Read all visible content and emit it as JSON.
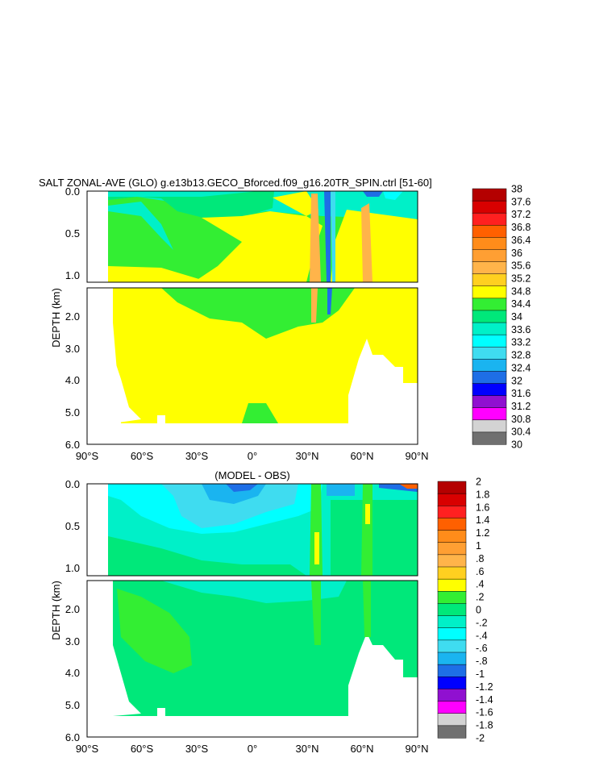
{
  "chart_data": [
    {
      "type": "heatmap",
      "title": "SALT ZONAL-AVE (GLO) g.e13b13.GECO_Bforced.f09_g16.20TR_SPIN.ctrl [51-60]",
      "ylabel": "DEPTH (km)",
      "x_ticks": [
        "90°S",
        "60°S",
        "30°S",
        "0°",
        "30°N",
        "60°N",
        "90°N"
      ],
      "upper_y_ticks": [
        "0.0",
        "0.5",
        "1.0"
      ],
      "lower_y_ticks": [
        "2.0",
        "3.0",
        "4.0",
        "5.0",
        "6.0"
      ],
      "xlim": [
        -90,
        90
      ],
      "ylim_km": [
        0,
        6
      ],
      "colorbar_labels": [
        "38",
        "37.6",
        "37.2",
        "36.8",
        "36.4",
        "36",
        "35.6",
        "35.2",
        "34.8",
        "34.4",
        "34",
        "33.6",
        "33.2",
        "32.8",
        "32.4",
        "32",
        "31.6",
        "31.2",
        "30.8",
        "30.4",
        "30"
      ],
      "colorbar_colors": [
        "#b40000",
        "#d80000",
        "#ff2020",
        "#ff6000",
        "#ff8c1a",
        "#ff9f33",
        "#ffb44a",
        "#ffd020",
        "#ffff00",
        "#33ee33",
        "#00e87a",
        "#00f0c8",
        "#00ffff",
        "#3fdcf0",
        "#1ab4f0",
        "#1e6ee6",
        "#0000ff",
        "#9010d0",
        "#ff00ff",
        "#d3d3d3",
        "#707070"
      ]
    },
    {
      "type": "heatmap",
      "title": "(MODEL - OBS)",
      "ylabel": "DEPTH (km)",
      "x_ticks": [
        "90°S",
        "60°S",
        "30°S",
        "0°",
        "30°N",
        "60°N",
        "90°N"
      ],
      "upper_y_ticks": [
        "0.0",
        "0.5",
        "1.0"
      ],
      "lower_y_ticks": [
        "2.0",
        "3.0",
        "4.0",
        "5.0",
        "6.0"
      ],
      "xlim": [
        -90,
        90
      ],
      "ylim_km": [
        0,
        6
      ],
      "colorbar_labels": [
        "2",
        "1.8",
        "1.6",
        "1.4",
        "1.2",
        "1",
        ".8",
        ".6",
        ".4",
        ".2",
        "0",
        "-.2",
        "-.4",
        "-.6",
        "-.8",
        "-1",
        "-1.2",
        "-1.4",
        "-1.6",
        "-1.8",
        "-2"
      ],
      "colorbar_colors": [
        "#b40000",
        "#d80000",
        "#ff2020",
        "#ff6000",
        "#ff8c1a",
        "#ff9f33",
        "#ffb44a",
        "#ffd020",
        "#ffff00",
        "#33ee33",
        "#00e87a",
        "#00f0c8",
        "#00ffff",
        "#3fdcf0",
        "#1ab4f0",
        "#1e6ee6",
        "#0000ff",
        "#9010d0",
        "#ff00ff",
        "#d3d3d3",
        "#707070"
      ]
    }
  ]
}
